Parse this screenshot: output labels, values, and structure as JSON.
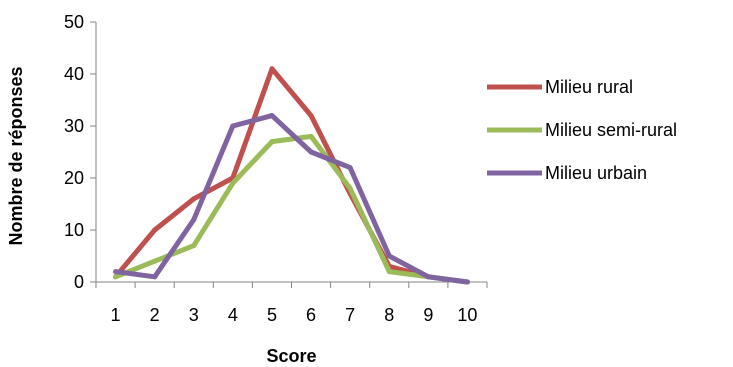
{
  "chart_data": {
    "type": "line",
    "title": "",
    "xlabel": "Score",
    "ylabel": "Nombre de réponses",
    "categories": [
      "1",
      "2",
      "3",
      "4",
      "5",
      "6",
      "7",
      "8",
      "9",
      "10"
    ],
    "ylim": [
      0,
      50
    ],
    "yticks": [
      "0",
      "10",
      "20",
      "30",
      "40",
      "50"
    ],
    "grid": false,
    "legend_position": "right",
    "series": [
      {
        "name": "Milieu rural",
        "color": "#C0504D",
        "values": [
          1,
          10,
          16,
          20,
          41,
          32,
          17,
          3,
          1,
          0
        ]
      },
      {
        "name": "Milieu semi-rural",
        "color": "#9BBB59",
        "values": [
          1,
          4,
          7,
          19,
          27,
          28,
          18,
          2,
          1,
          0
        ]
      },
      {
        "name": "Milieu urbain",
        "color": "#8064A2",
        "values": [
          2,
          1,
          12,
          30,
          32,
          25,
          22,
          5,
          1,
          0
        ]
      }
    ]
  }
}
